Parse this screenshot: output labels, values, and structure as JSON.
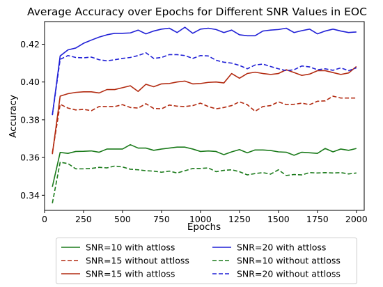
{
  "chart_data": {
    "type": "line",
    "title": "Average Accuracy over Epochs for Different SNR Values in EOC",
    "xlabel": "Epochs",
    "ylabel": "Accuracy",
    "xlim": [
      0,
      2050
    ],
    "ylim": [
      0.332,
      0.432
    ],
    "xticks": [
      0,
      250,
      500,
      750,
      1000,
      1250,
      1500,
      1750,
      2000
    ],
    "yticks": [
      0.34,
      0.36,
      0.38,
      0.4,
      0.42
    ],
    "ytick_labels": [
      "0.34",
      "0.36",
      "0.38",
      "0.40",
      "0.42"
    ],
    "grid": false,
    "legend_position": "below-plot",
    "x": [
      50,
      100,
      150,
      200,
      250,
      300,
      350,
      400,
      450,
      500,
      550,
      600,
      650,
      700,
      750,
      800,
      850,
      900,
      950,
      1000,
      1050,
      1100,
      1150,
      1200,
      1250,
      1300,
      1350,
      1400,
      1450,
      1500,
      1550,
      1600,
      1650,
      1700,
      1750,
      1800,
      1850,
      1900,
      1950,
      2000
    ],
    "series": [
      {
        "name": "SNR=10 with attloss",
        "color": "#1a7a1a",
        "dash": "solid",
        "values": [
          0.3445,
          0.3627,
          0.3622,
          0.3632,
          0.3633,
          0.3635,
          0.3628,
          0.3645,
          0.3645,
          0.3645,
          0.3668,
          0.365,
          0.365,
          0.3638,
          0.3645,
          0.365,
          0.3655,
          0.3655,
          0.3645,
          0.3632,
          0.3635,
          0.3632,
          0.3615,
          0.363,
          0.3642,
          0.3625,
          0.364,
          0.364,
          0.3637,
          0.363,
          0.3628,
          0.3612,
          0.3628,
          0.3625,
          0.3622,
          0.3648,
          0.363,
          0.3645,
          0.3638,
          0.3648
        ]
      },
      {
        "name": "SNR=10 without attloss",
        "color": "#1a7a1a",
        "dash": "dashed",
        "values": [
          0.3358,
          0.3575,
          0.3568,
          0.354,
          0.354,
          0.3542,
          0.3548,
          0.3545,
          0.3555,
          0.355,
          0.3538,
          0.3535,
          0.353,
          0.3528,
          0.3522,
          0.3528,
          0.3518,
          0.353,
          0.3542,
          0.3542,
          0.3545,
          0.3525,
          0.3532,
          0.3535,
          0.3525,
          0.3508,
          0.3515,
          0.352,
          0.3512,
          0.3535,
          0.3505,
          0.351,
          0.3508,
          0.352,
          0.3518,
          0.352,
          0.3518,
          0.352,
          0.3513,
          0.3518
        ]
      },
      {
        "name": "SNR=15 with attloss",
        "color": "#b22a10",
        "dash": "solid",
        "values": [
          0.3618,
          0.3925,
          0.3938,
          0.3945,
          0.3948,
          0.3948,
          0.3942,
          0.396,
          0.396,
          0.397,
          0.398,
          0.395,
          0.3988,
          0.3975,
          0.399,
          0.3992,
          0.4,
          0.4005,
          0.399,
          0.3992,
          0.3998,
          0.4,
          0.3995,
          0.4045,
          0.402,
          0.4045,
          0.4052,
          0.4045,
          0.404,
          0.4045,
          0.4065,
          0.405,
          0.4035,
          0.4042,
          0.406,
          0.406,
          0.405,
          0.404,
          0.4048,
          0.4082
        ]
      },
      {
        "name": "SNR=15 without attloss",
        "color": "#b22a10",
        "dash": "dashed",
        "values": [
          0.3625,
          0.3882,
          0.3862,
          0.3852,
          0.3855,
          0.3848,
          0.387,
          0.387,
          0.387,
          0.388,
          0.3865,
          0.3862,
          0.3885,
          0.386,
          0.3858,
          0.3878,
          0.3872,
          0.387,
          0.3875,
          0.3888,
          0.387,
          0.3858,
          0.3865,
          0.3875,
          0.3895,
          0.388,
          0.3845,
          0.387,
          0.3875,
          0.3895,
          0.388,
          0.3882,
          0.3888,
          0.388,
          0.3898,
          0.39,
          0.3925,
          0.3915,
          0.3915,
          0.3915
        ]
      },
      {
        "name": "SNR=20 with attloss",
        "color": "#1f1fd6",
        "dash": "solid",
        "values": [
          0.3825,
          0.4138,
          0.417,
          0.418,
          0.4205,
          0.4222,
          0.4238,
          0.425,
          0.4258,
          0.4258,
          0.426,
          0.4275,
          0.4255,
          0.427,
          0.428,
          0.4285,
          0.4262,
          0.429,
          0.4258,
          0.428,
          0.4285,
          0.4278,
          0.4262,
          0.4275,
          0.425,
          0.4245,
          0.4245,
          0.427,
          0.4275,
          0.4278,
          0.4285,
          0.4262,
          0.4272,
          0.428,
          0.4255,
          0.427,
          0.428,
          0.427,
          0.4262,
          0.4265
        ]
      },
      {
        "name": "SNR=20 without attloss",
        "color": "#1f1fd6",
        "dash": "dashed",
        "values": [
          0.3825,
          0.412,
          0.414,
          0.413,
          0.4128,
          0.4132,
          0.4118,
          0.4112,
          0.4118,
          0.4125,
          0.413,
          0.414,
          0.4155,
          0.4125,
          0.413,
          0.4145,
          0.4145,
          0.414,
          0.4125,
          0.414,
          0.4138,
          0.4115,
          0.4105,
          0.41,
          0.4088,
          0.407,
          0.409,
          0.4095,
          0.4082,
          0.407,
          0.406,
          0.4065,
          0.4085,
          0.408,
          0.4065,
          0.407,
          0.4062,
          0.4075,
          0.406,
          0.4075
        ]
      }
    ],
    "legend_order": [
      0,
      3,
      2,
      4,
      1,
      5
    ]
  }
}
